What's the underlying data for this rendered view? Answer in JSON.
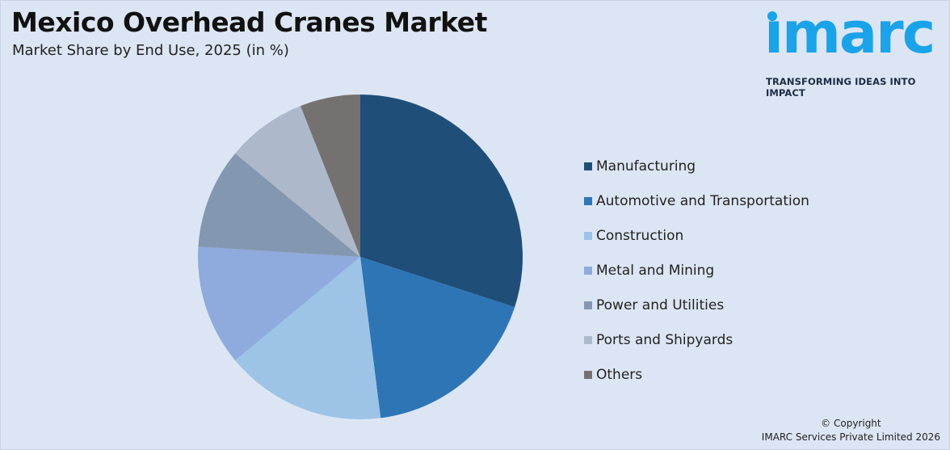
{
  "header": {
    "title": "Mexico Overhead Cranes Market",
    "subtitle": "Market Share by End Use, 2025 (in %)"
  },
  "logo": {
    "word": "ımarc",
    "tagline": "TRANSFORMING IDEAS INTO IMPACT",
    "color": "#1aa3e8"
  },
  "chart_data": {
    "type": "pie",
    "title": "Mexico Overhead Cranes Market",
    "subtitle": "Market Share by End Use, 2025 (in %)",
    "legend_position": "right",
    "slices": [
      {
        "label": "Manufacturing",
        "value": 30,
        "color": "#1f4e79"
      },
      {
        "label": "Automotive and Transportation",
        "value": 18,
        "color": "#2e75b6"
      },
      {
        "label": "Construction",
        "value": 16,
        "color": "#9dc3e6"
      },
      {
        "label": "Metal and Mining",
        "value": 12,
        "color": "#8faadc"
      },
      {
        "label": "Power and Utilities",
        "value": 10,
        "color": "#8497b0"
      },
      {
        "label": "Ports and Shipyards",
        "value": 8,
        "color": "#adb9ca"
      },
      {
        "label": "Others",
        "value": 6,
        "color": "#767171"
      }
    ]
  },
  "footer": {
    "copyright_line1": "© Copyright",
    "copyright_line2": "IMARC Services Private Limited 2026"
  }
}
